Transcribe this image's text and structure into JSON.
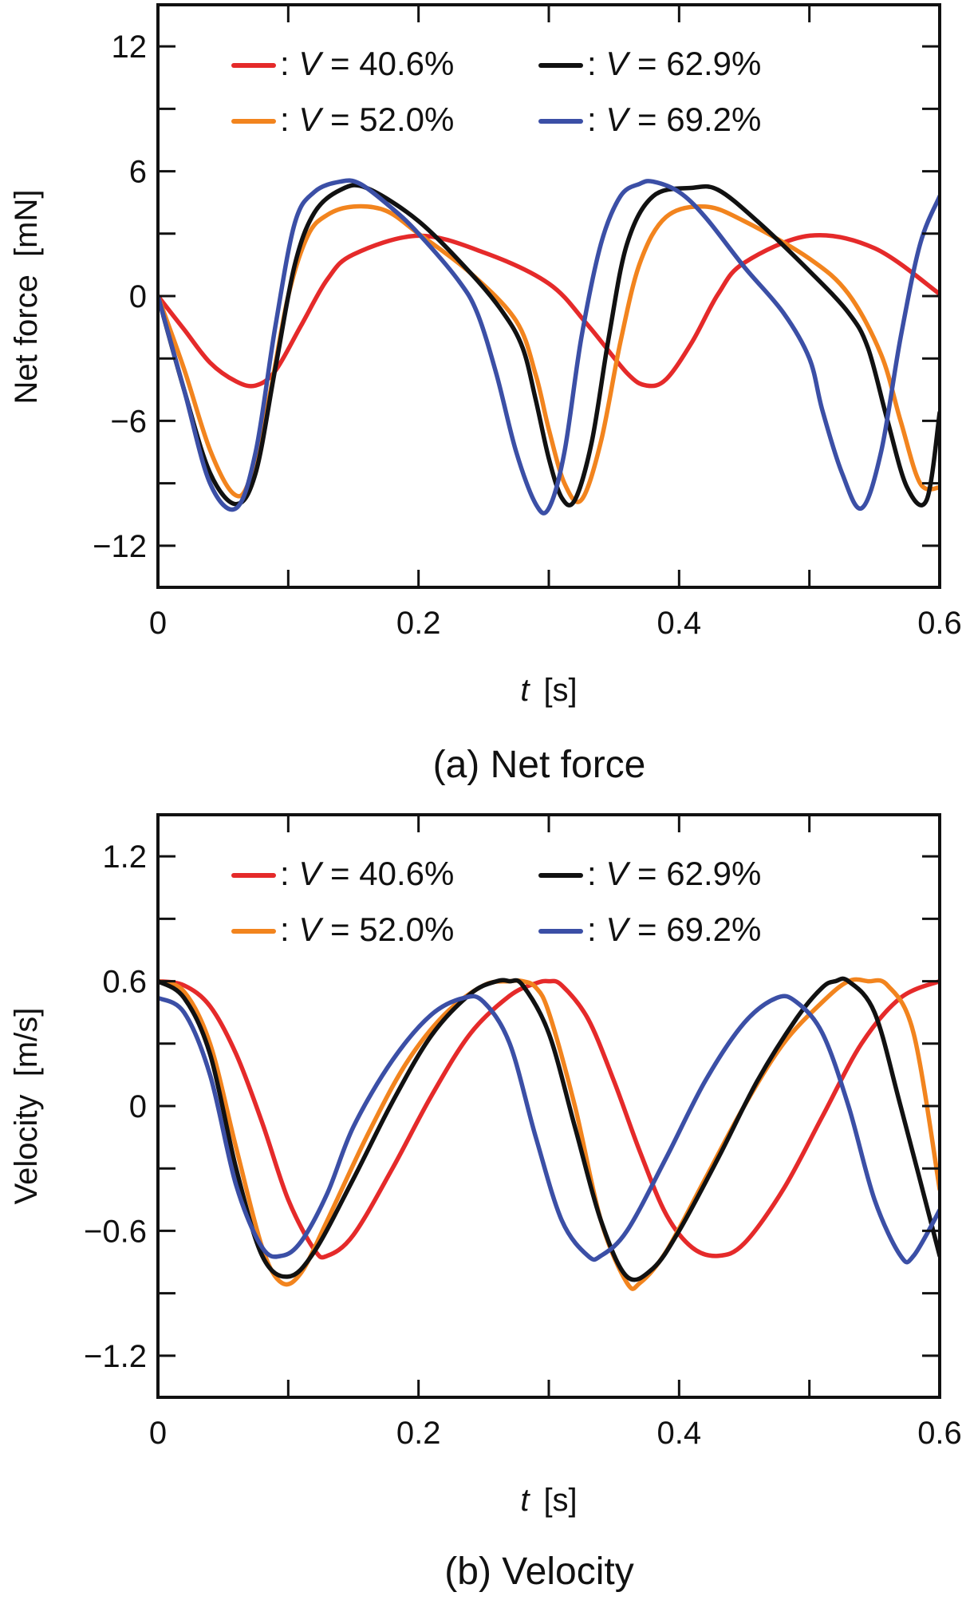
{
  "chart_data": [
    {
      "type": "line",
      "caption": "(a) Net force",
      "xlabel_symbol": "t",
      "xlabel_unit": "[s]",
      "ylabel": "Net force  [mN]",
      "xlim": [
        0,
        0.6
      ],
      "ylim": [
        -14,
        14
      ],
      "xticks": [
        0,
        0.2,
        0.4,
        0.6
      ],
      "xtick_labels": [
        "0",
        "0.2",
        "0.4",
        "0.6"
      ],
      "yticks": [
        12,
        6,
        0,
        -6,
        -12
      ],
      "ytick_labels": [
        "12",
        "6",
        "0",
        "−6",
        "−12"
      ],
      "legend": {
        "position": "top",
        "columns": 2
      },
      "series": [
        {
          "name": "V = 40.6%",
          "legend_prefix": ": ",
          "legend_symbol": "V",
          "legend_rest": " = 40.6%",
          "color": "#e52a2a",
          "x": [
            0,
            0.02,
            0.04,
            0.06,
            0.075,
            0.09,
            0.11,
            0.13,
            0.15,
            0.2,
            0.25,
            0.3,
            0.33,
            0.36,
            0.375,
            0.39,
            0.41,
            0.43,
            0.45,
            0.5,
            0.55,
            0.6
          ],
          "y": [
            0,
            -1.6,
            -3.2,
            -4.1,
            -4.3,
            -3.6,
            -1.4,
            0.8,
            2.0,
            2.9,
            2.1,
            0.6,
            -1.4,
            -3.7,
            -4.3,
            -4.0,
            -2.2,
            0.1,
            1.6,
            2.9,
            2.3,
            0.1
          ]
        },
        {
          "name": "V = 52.0%",
          "legend_prefix": ": ",
          "legend_symbol": "V",
          "legend_rest": " = 52.0%",
          "color": "#f2841e",
          "x": [
            0,
            0.02,
            0.04,
            0.058,
            0.07,
            0.085,
            0.1,
            0.115,
            0.13,
            0.15,
            0.175,
            0.2,
            0.24,
            0.275,
            0.29,
            0.3,
            0.312,
            0.325,
            0.34,
            0.355,
            0.37,
            0.39,
            0.42,
            0.45,
            0.5,
            0.53,
            0.555,
            0.57,
            0.585,
            0.6
          ],
          "y": [
            0,
            -3.5,
            -7.4,
            -9.5,
            -8.9,
            -5.0,
            0.0,
            2.9,
            3.9,
            4.3,
            4.1,
            3.0,
            1.1,
            -1.2,
            -3.8,
            -6.4,
            -9.0,
            -9.8,
            -7.0,
            -2.2,
            1.6,
            3.8,
            4.3,
            3.6,
            1.8,
            0.1,
            -2.8,
            -6.0,
            -9.0,
            -9.2
          ]
        },
        {
          "name": "V = 62.9%",
          "legend_prefix": ": ",
          "legend_symbol": "V",
          "legend_rest": " = 62.9%",
          "color": "#111111",
          "x": [
            0,
            0.02,
            0.04,
            0.06,
            0.075,
            0.09,
            0.105,
            0.12,
            0.14,
            0.16,
            0.2,
            0.24,
            0.265,
            0.28,
            0.29,
            0.3,
            0.31,
            0.32,
            0.333,
            0.346,
            0.36,
            0.38,
            0.41,
            0.43,
            0.46,
            0.5,
            0.53,
            0.545,
            0.56,
            0.575,
            0.59,
            0.6
          ],
          "y": [
            0,
            -4.5,
            -8.5,
            -10.0,
            -8.5,
            -3.5,
            1.5,
            4.0,
            5.1,
            5.2,
            3.6,
            1.1,
            -0.8,
            -2.5,
            -5.0,
            -7.8,
            -9.7,
            -9.8,
            -7.0,
            -2.0,
            2.5,
            4.8,
            5.2,
            5.1,
            3.6,
            1.2,
            -0.8,
            -2.5,
            -6.0,
            -9.2,
            -9.8,
            -5.6
          ]
        },
        {
          "name": "V = 69.2%",
          "legend_prefix": ": ",
          "legend_symbol": "V",
          "legend_rest": " = 69.2%",
          "color": "#3b4fa6",
          "x": [
            0,
            0.02,
            0.04,
            0.06,
            0.075,
            0.09,
            0.105,
            0.12,
            0.14,
            0.155,
            0.18,
            0.2,
            0.23,
            0.245,
            0.26,
            0.275,
            0.29,
            0.3,
            0.312,
            0.325,
            0.34,
            0.355,
            0.37,
            0.38,
            0.4,
            0.42,
            0.45,
            0.48,
            0.5,
            0.51,
            0.525,
            0.54,
            0.555,
            0.57,
            0.585,
            0.6
          ],
          "y": [
            0,
            -4.5,
            -9.0,
            -10.2,
            -7.5,
            -1.5,
            3.5,
            5.0,
            5.5,
            5.4,
            4.2,
            3.0,
            0.8,
            -0.8,
            -3.8,
            -7.5,
            -10.0,
            -10.2,
            -7.5,
            -2.0,
            2.5,
            4.8,
            5.4,
            5.5,
            5.0,
            3.8,
            1.4,
            -0.8,
            -3.0,
            -5.5,
            -8.5,
            -10.2,
            -7.5,
            -2.0,
            2.5,
            4.8
          ]
        }
      ]
    },
    {
      "type": "line",
      "caption": "(b) Velocity",
      "xlabel_symbol": "t",
      "xlabel_unit": "[s]",
      "ylabel": "Velocity  [m/s]",
      "xlim": [
        0,
        0.6
      ],
      "ylim": [
        -1.4,
        1.4
      ],
      "xticks": [
        0,
        0.2,
        0.4,
        0.6
      ],
      "xtick_labels": [
        "0",
        "0.2",
        "0.4",
        "0.6"
      ],
      "yticks": [
        1.2,
        0.6,
        0,
        -0.6,
        -1.2
      ],
      "ytick_labels": [
        "1.2",
        "0.6",
        "0",
        "−0.6",
        "−1.2"
      ],
      "legend": {
        "position": "top",
        "columns": 2
      },
      "series": [
        {
          "name": "V = 40.6%",
          "legend_prefix": ": ",
          "legend_symbol": "V",
          "legend_rest": " = 40.6%",
          "color": "#e52a2a",
          "x": [
            0,
            0.02,
            0.04,
            0.06,
            0.08,
            0.1,
            0.12,
            0.13,
            0.15,
            0.18,
            0.21,
            0.24,
            0.27,
            0.29,
            0.3,
            0.31,
            0.33,
            0.35,
            0.37,
            0.39,
            0.41,
            0.43,
            0.45,
            0.48,
            0.51,
            0.54,
            0.57,
            0.6
          ],
          "y": [
            0.6,
            0.58,
            0.48,
            0.25,
            -0.08,
            -0.45,
            -0.69,
            -0.72,
            -0.62,
            -0.3,
            0.05,
            0.35,
            0.53,
            0.59,
            0.6,
            0.58,
            0.42,
            0.12,
            -0.22,
            -0.52,
            -0.68,
            -0.72,
            -0.66,
            -0.4,
            -0.05,
            0.3,
            0.52,
            0.6
          ]
        },
        {
          "name": "V = 52.0%",
          "legend_prefix": ": ",
          "legend_symbol": "V",
          "legend_rest": " = 52.0%",
          "color": "#f2841e",
          "x": [
            0,
            0.02,
            0.04,
            0.06,
            0.08,
            0.095,
            0.11,
            0.13,
            0.16,
            0.19,
            0.22,
            0.25,
            0.27,
            0.28,
            0.29,
            0.3,
            0.32,
            0.34,
            0.36,
            0.37,
            0.39,
            0.42,
            0.45,
            0.48,
            0.51,
            0.53,
            0.545,
            0.56,
            0.58,
            0.6
          ],
          "y": [
            0.6,
            0.55,
            0.3,
            -0.2,
            -0.68,
            -0.85,
            -0.8,
            -0.55,
            -0.15,
            0.2,
            0.44,
            0.58,
            0.6,
            0.6,
            0.57,
            0.45,
            0.0,
            -0.55,
            -0.85,
            -0.85,
            -0.7,
            -0.35,
            0.0,
            0.3,
            0.5,
            0.6,
            0.6,
            0.58,
            0.35,
            -0.4
          ]
        },
        {
          "name": "V = 62.9%",
          "legend_prefix": ": ",
          "legend_symbol": "V",
          "legend_rest": " = 62.9%",
          "color": "#111111",
          "x": [
            0,
            0.02,
            0.04,
            0.06,
            0.08,
            0.1,
            0.12,
            0.15,
            0.18,
            0.21,
            0.24,
            0.26,
            0.27,
            0.28,
            0.3,
            0.32,
            0.34,
            0.36,
            0.38,
            0.4,
            0.43,
            0.46,
            0.49,
            0.51,
            0.52,
            0.53,
            0.55,
            0.57,
            0.6
          ],
          "y": [
            0.6,
            0.52,
            0.25,
            -0.3,
            -0.72,
            -0.82,
            -0.7,
            -0.35,
            0.02,
            0.34,
            0.54,
            0.6,
            0.6,
            0.58,
            0.35,
            -0.1,
            -0.55,
            -0.82,
            -0.78,
            -0.6,
            -0.25,
            0.12,
            0.42,
            0.57,
            0.6,
            0.6,
            0.45,
            0.0,
            -0.72
          ]
        },
        {
          "name": "V = 69.2%",
          "legend_prefix": ": ",
          "legend_symbol": "V",
          "legend_rest": " = 69.2%",
          "color": "#3b4fa6",
          "x": [
            0,
            0.02,
            0.04,
            0.06,
            0.08,
            0.095,
            0.11,
            0.13,
            0.15,
            0.18,
            0.21,
            0.235,
            0.25,
            0.27,
            0.29,
            0.31,
            0.33,
            0.34,
            0.36,
            0.39,
            0.42,
            0.45,
            0.475,
            0.49,
            0.51,
            0.53,
            0.55,
            0.57,
            0.58,
            0.6
          ],
          "y": [
            0.52,
            0.45,
            0.15,
            -0.38,
            -0.68,
            -0.72,
            -0.65,
            -0.42,
            -0.1,
            0.22,
            0.44,
            0.52,
            0.5,
            0.3,
            -0.15,
            -0.55,
            -0.72,
            -0.72,
            -0.6,
            -0.25,
            0.12,
            0.4,
            0.52,
            0.5,
            0.35,
            0.0,
            -0.45,
            -0.72,
            -0.72,
            -0.5
          ]
        }
      ]
    }
  ]
}
